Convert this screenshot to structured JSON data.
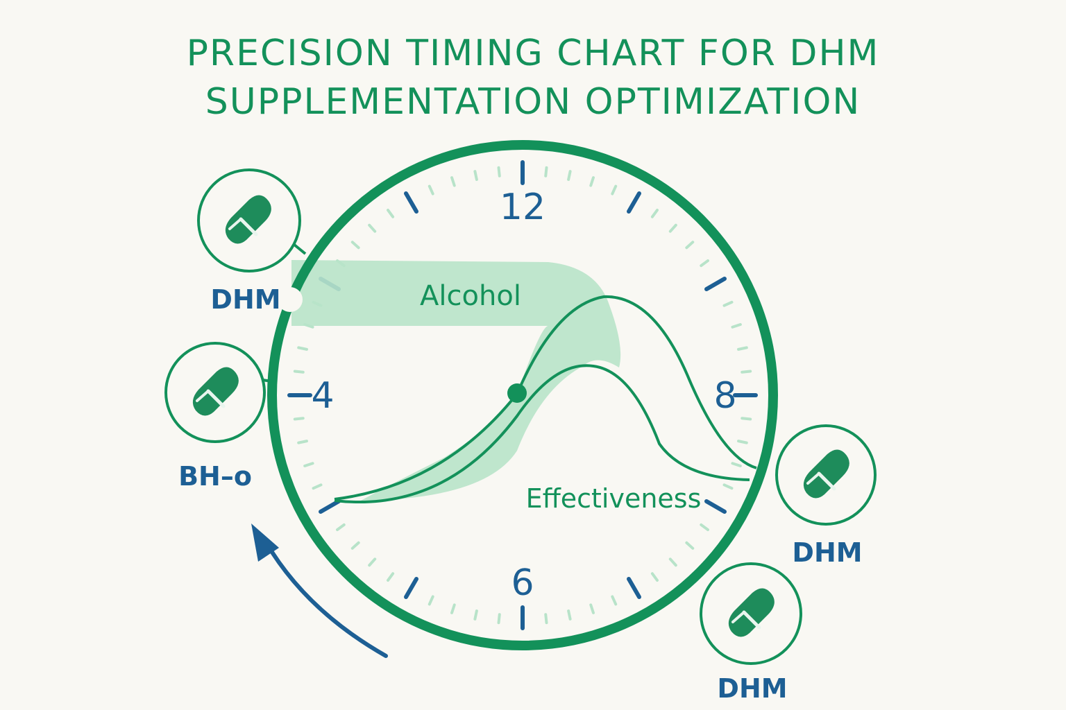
{
  "title": {
    "line1": "PRECISION TIMING CHART FOR DHM",
    "line2": "SUPPLEMENTATION OPTIMIZATION"
  },
  "clock": {
    "numbers": {
      "top": "12",
      "left": "4",
      "right": "8",
      "bottom": "6"
    }
  },
  "curves": {
    "alcohol_label": "Alcohol",
    "effectiveness_label": "Effectiveness"
  },
  "markers": {
    "top_left": "DHM",
    "left": "BH–o",
    "right": "DHM",
    "bottom_right": "DHM"
  },
  "colors": {
    "green": "#13915a",
    "light_green": "#b8e3c9",
    "blue": "#1d5f94",
    "background": "#f9f8f3"
  },
  "icons": {
    "pill": "pill-icon",
    "arrow": "counterclockwise-arrow-icon"
  }
}
